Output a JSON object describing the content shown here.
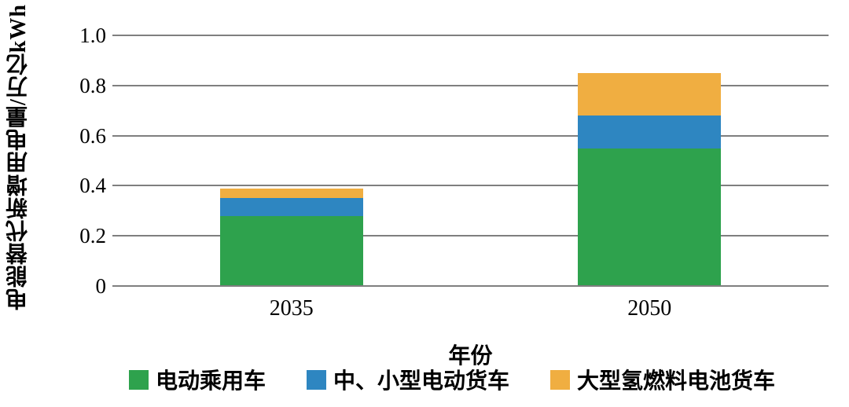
{
  "figure": {
    "y_axis_title": "电能替代新增用电量/万亿kWh",
    "x_axis_title": "年份"
  },
  "colors": {
    "background": "#ffffff",
    "gridline": "#7f7f7f",
    "text": "#000000",
    "series_green": "#2EA24D",
    "series_blue": "#2E86C1",
    "series_orange": "#F0AE41"
  },
  "chart_data": {
    "type": "bar",
    "stacked": true,
    "categories": [
      "2035",
      "2050"
    ],
    "series": [
      {
        "name": "电动乘用车",
        "color": "#2EA24D",
        "values": [
          0.28,
          0.55
        ]
      },
      {
        "name": "中、小型电动货车",
        "color": "#2E86C1",
        "values": [
          0.07,
          0.13
        ]
      },
      {
        "name": "大型氢燃料电池货车",
        "color": "#F0AE41",
        "values": [
          0.04,
          0.17
        ]
      }
    ],
    "stack_totals": [
      0.39,
      0.85
    ],
    "title": "",
    "xlabel": "年份",
    "ylabel": "电能替代新增用电量/万亿kWh",
    "ylim": [
      0,
      1.0
    ],
    "yticks": [
      {
        "value": 0,
        "label": "0"
      },
      {
        "value": 0.2,
        "label": "0.2"
      },
      {
        "value": 0.4,
        "label": "0.4"
      },
      {
        "value": 0.6,
        "label": "0.6"
      },
      {
        "value": 0.8,
        "label": "0.8"
      },
      {
        "value": 1.0,
        "label": "1.0"
      }
    ],
    "grid": true,
    "legend_position": "bottom"
  }
}
